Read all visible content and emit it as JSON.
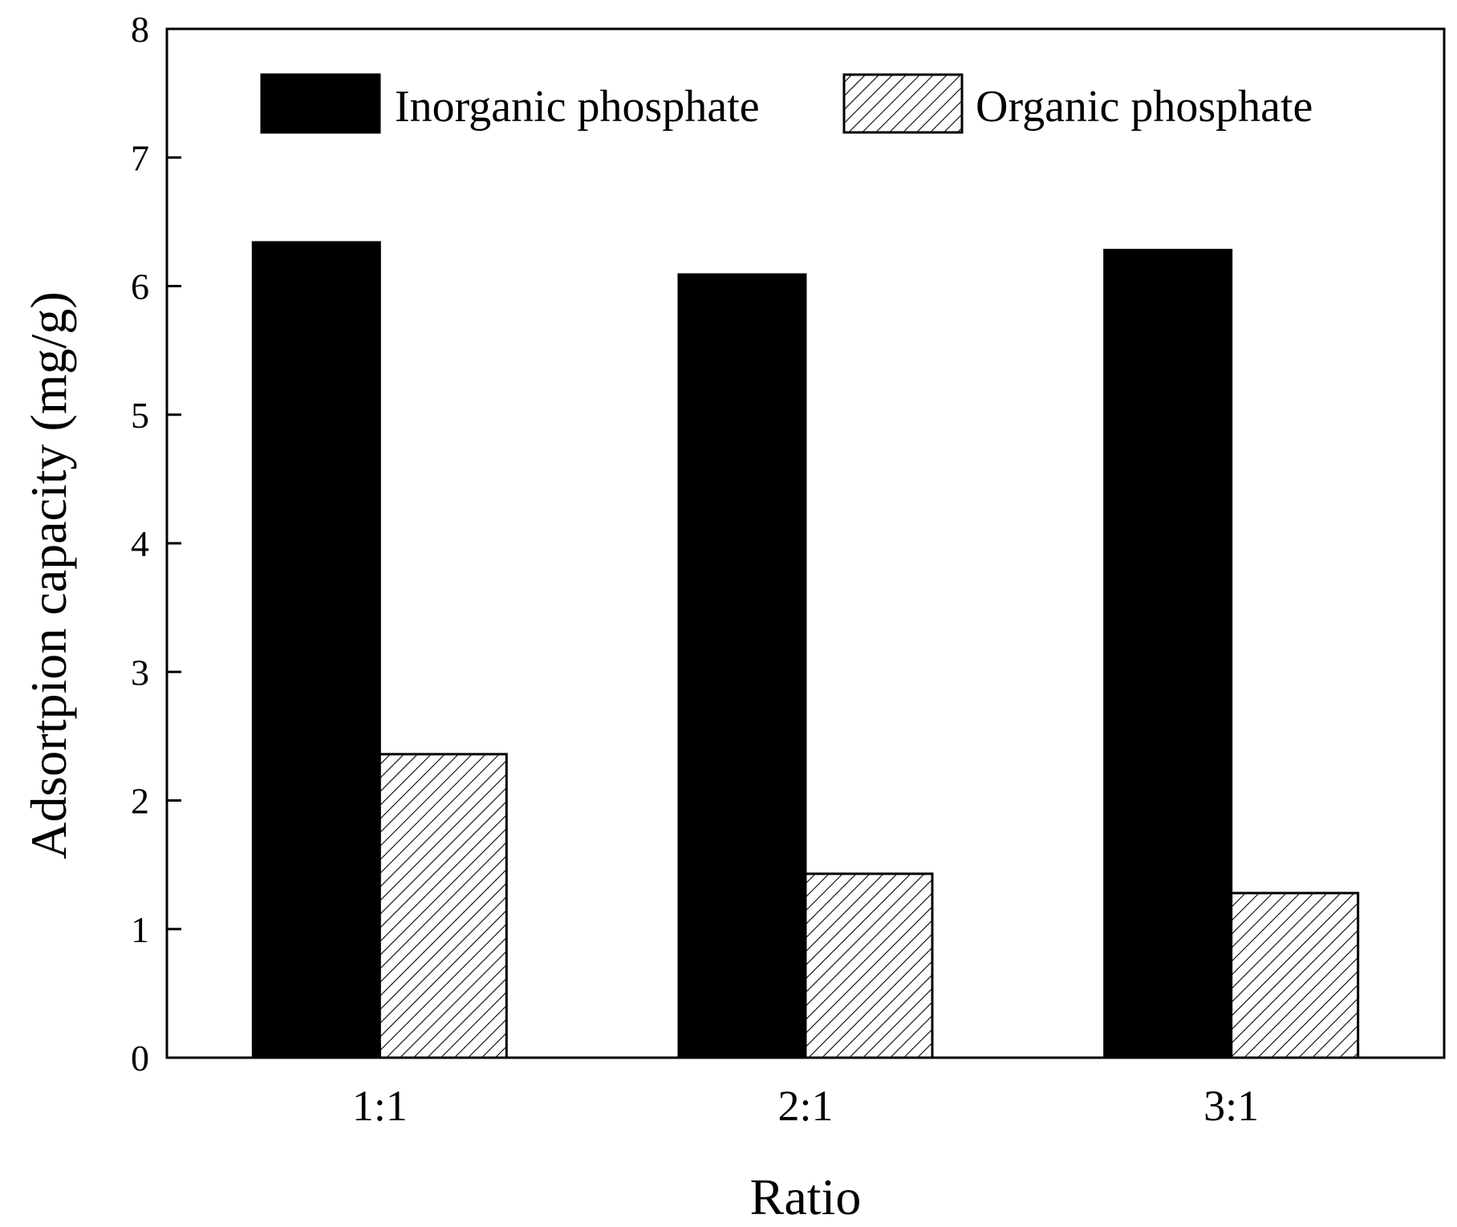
{
  "chart_data": {
    "type": "bar",
    "title": "",
    "xlabel": "Ratio",
    "ylabel": "Adsortpion capacity (mg/g)",
    "categories": [
      "1:1",
      "2:1",
      "3:1"
    ],
    "series": [
      {
        "name": "Inorganic phosphate",
        "values": [
          6.34,
          6.09,
          6.28
        ],
        "fill": "solid",
        "color": "#000000"
      },
      {
        "name": "Organic phosphate",
        "values": [
          2.36,
          1.43,
          1.28
        ],
        "fill": "hatched",
        "color": "#000000"
      }
    ],
    "ylim": [
      0,
      8
    ],
    "yticks": [
      "0",
      "1",
      "2",
      "3",
      "4",
      "5",
      "6",
      "7",
      "8"
    ],
    "grid": false,
    "legend": "top"
  }
}
